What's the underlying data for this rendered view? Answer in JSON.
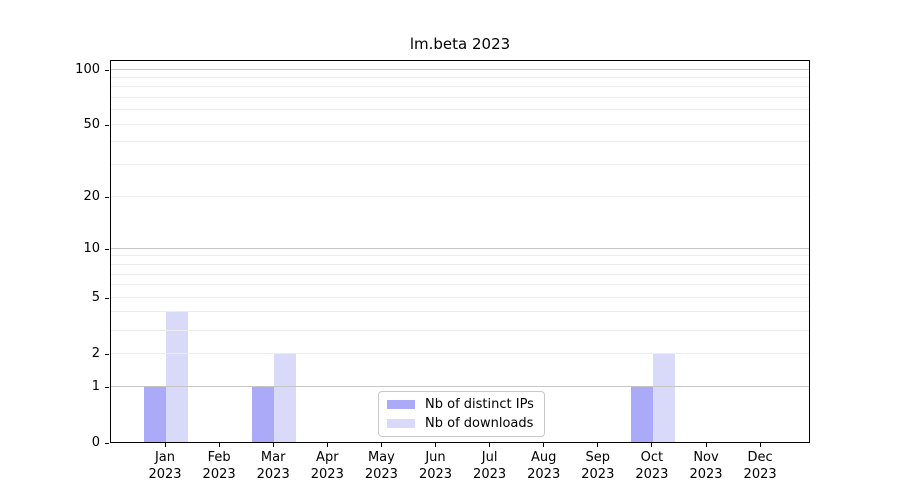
{
  "title": "lm.beta 2023",
  "legend": {
    "items": [
      {
        "label": "Nb of distinct IPs"
      },
      {
        "label": "Nb of downloads"
      }
    ]
  },
  "chart_data": {
    "type": "bar",
    "title": "lm.beta 2023",
    "categories": [
      "Jan 2023",
      "Feb 2023",
      "Mar 2023",
      "Apr 2023",
      "May 2023",
      "Jun 2023",
      "Jul 2023",
      "Aug 2023",
      "Sep 2023",
      "Oct 2023",
      "Nov 2023",
      "Dec 2023"
    ],
    "series": [
      {
        "name": "Nb of distinct IPs",
        "color": "#aaaaf8",
        "values": [
          1,
          0,
          1,
          0,
          0,
          0,
          0,
          0,
          0,
          1,
          0,
          0
        ]
      },
      {
        "name": "Nb of downloads",
        "color": "#d9d9fa",
        "values": [
          4,
          0,
          2,
          0,
          0,
          0,
          0,
          0,
          0,
          2,
          0,
          0
        ]
      }
    ],
    "xlabel": "",
    "ylabel": "",
    "yscale": "log1p",
    "ylim": [
      0,
      113.4
    ],
    "y_tick_values": [
      0,
      1,
      2,
      5,
      10,
      20,
      50,
      100
    ],
    "grid": {
      "orientation": "horizontal",
      "major_values": [
        1,
        10,
        100
      ],
      "minor_values": [
        2,
        3,
        4,
        5,
        6,
        7,
        8,
        9,
        20,
        30,
        40,
        50,
        60,
        70,
        80,
        90
      ]
    },
    "legend_position": "bottom-center-inside",
    "colors": {
      "grid_major": "#c6c6c6",
      "grid_minor": "#ededed",
      "axis": "#000000",
      "background": "#ffffff"
    }
  }
}
